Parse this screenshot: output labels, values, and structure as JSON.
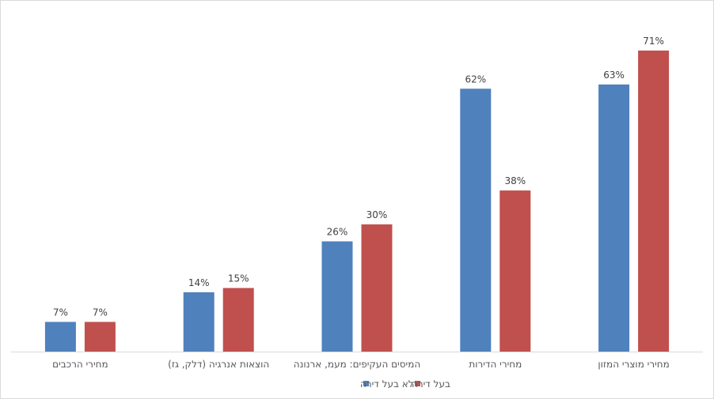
{
  "chart_data": {
    "type": "bar",
    "title": "",
    "xlabel": "",
    "ylabel": "",
    "ylim": [
      0,
      75
    ],
    "grid": false,
    "legend_position": "bottom",
    "value_suffix": "%",
    "categories": [
      "מחירי הרכבים",
      "הוצאות אנרגיה (דלק, גז)",
      "המיסים העקיפים: מעמ, ארנונה",
      "מחירי הדירות",
      "מחירי מוצרי המזון"
    ],
    "series": [
      {
        "name": "לא בעל דירה",
        "color": "#4f81bd",
        "values": [
          7,
          14,
          26,
          62,
          63
        ]
      },
      {
        "name": "בעל דירה",
        "color": "#c0504d",
        "values": [
          7,
          15,
          30,
          38,
          71
        ]
      }
    ]
  },
  "colors": {
    "axis": "#d9d9d9",
    "label": "#404040"
  }
}
